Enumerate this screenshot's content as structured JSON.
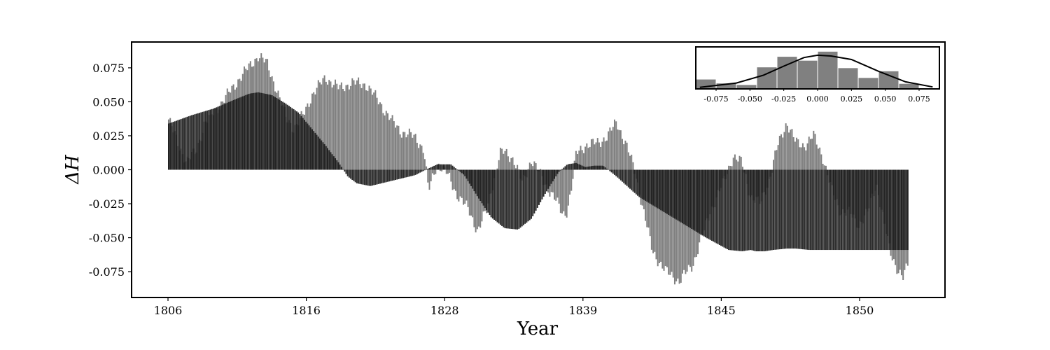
{
  "chart_data": [
    {
      "type": "bar",
      "role": "main",
      "title": "",
      "xlabel": "Year",
      "ylabel": "ΔH",
      "ylim": [
        -0.094,
        0.094
      ],
      "yticks": [
        0.075,
        0.05,
        0.025,
        0.0,
        -0.025,
        -0.05,
        -0.075
      ],
      "ytick_labels": [
        "0.075",
        "0.050",
        "0.025",
        "0.000",
        "-0.025",
        "-0.050",
        "-0.075"
      ],
      "xtick_labels": [
        "1806",
        "1816",
        "1828",
        "1839",
        "1845",
        "1850"
      ],
      "bar_count": 480,
      "colors": {
        "raw": "#808080",
        "smooth": "#1a1a1a",
        "frame": "#000000"
      },
      "series": [
        {
          "kind": "raw",
          "points": [
            [
              0,
              0.037
            ],
            [
              2,
              0.02
            ],
            [
              4,
              0.006
            ],
            [
              6,
              0.013
            ],
            [
              8,
              0.034
            ],
            [
              12,
              0.05
            ],
            [
              16,
              0.068
            ],
            [
              19,
              0.08
            ],
            [
              20,
              0.084
            ],
            [
              22,
              0.078
            ],
            [
              24,
              0.06
            ],
            [
              26,
              0.04
            ],
            [
              28,
              0.03
            ],
            [
              30,
              0.04
            ],
            [
              32,
              0.055
            ],
            [
              35,
              0.068
            ],
            [
              38,
              0.06
            ],
            [
              41,
              0.064
            ],
            [
              44,
              0.063
            ],
            [
              47,
              0.05
            ],
            [
              50,
              0.035
            ],
            [
              52,
              0.028
            ],
            [
              55,
              0.024
            ],
            [
              57,
              0.015
            ],
            [
              58,
              -0.016
            ],
            [
              60,
              0.005
            ],
            [
              62,
              -0.002
            ],
            [
              64,
              -0.016
            ],
            [
              67,
              -0.03
            ],
            [
              69,
              -0.045
            ],
            [
              71,
              -0.03
            ],
            [
              72,
              -0.015
            ],
            [
              74,
              0.012
            ],
            [
              75,
              0.013
            ],
            [
              77,
              0.008
            ],
            [
              79,
              -0.01
            ],
            [
              81,
              0.008
            ],
            [
              82,
              0.002
            ],
            [
              84,
              -0.01
            ],
            [
              86,
              -0.02
            ],
            [
              88,
              -0.033
            ],
            [
              89,
              -0.03
            ],
            [
              90,
              -0.012
            ],
            [
              91,
              0.012
            ],
            [
              93,
              0.018
            ],
            [
              96,
              0.02
            ],
            [
              98,
              0.025
            ],
            [
              100,
              0.035
            ],
            [
              102,
              0.02
            ],
            [
              104,
              0.0
            ],
            [
              106,
              -0.03
            ],
            [
              108,
              -0.06
            ],
            [
              111,
              -0.075
            ],
            [
              114,
              -0.082
            ],
            [
              117,
              -0.07
            ],
            [
              119,
              -0.05
            ],
            [
              121,
              -0.03
            ],
            [
              124,
              -0.008
            ],
            [
              126,
              0.01
            ],
            [
              128,
              0.005
            ],
            [
              130,
              -0.02
            ],
            [
              132,
              -0.025
            ],
            [
              134,
              -0.008
            ],
            [
              136,
              0.018
            ],
            [
              138,
              0.035
            ],
            [
              140,
              0.02
            ],
            [
              142,
              0.018
            ],
            [
              144,
              0.025
            ],
            [
              146,
              0.01
            ],
            [
              148,
              -0.015
            ],
            [
              150,
              -0.03
            ],
            [
              152,
              -0.032
            ],
            [
              154,
              -0.04
            ],
            [
              156,
              -0.032
            ],
            [
              158,
              -0.01
            ],
            [
              161,
              -0.06
            ],
            [
              163,
              -0.075
            ],
            [
              164,
              -0.08
            ],
            [
              165,
              -0.07
            ]
          ]
        },
        {
          "kind": "smooth",
          "points": [
            [
              0,
              0.034
            ],
            [
              5,
              0.04
            ],
            [
              10,
              0.045
            ],
            [
              15,
              0.052
            ],
            [
              18,
              0.056
            ],
            [
              20,
              0.057
            ],
            [
              23,
              0.055
            ],
            [
              26,
              0.049
            ],
            [
              29,
              0.042
            ],
            [
              32,
              0.03
            ],
            [
              35,
              0.018
            ],
            [
              38,
              0.005
            ],
            [
              40,
              -0.005
            ],
            [
              42,
              -0.01
            ],
            [
              45,
              -0.012
            ],
            [
              50,
              -0.008
            ],
            [
              55,
              -0.004
            ],
            [
              58,
              0.001
            ],
            [
              60,
              0.004
            ],
            [
              63,
              0.004
            ],
            [
              66,
              -0.004
            ],
            [
              69,
              -0.02
            ],
            [
              72,
              -0.035
            ],
            [
              75,
              -0.043
            ],
            [
              78,
              -0.044
            ],
            [
              81,
              -0.036
            ],
            [
              84,
              -0.018
            ],
            [
              87,
              -0.002
            ],
            [
              89,
              0.004
            ],
            [
              91,
              0.005
            ],
            [
              93,
              0.002
            ],
            [
              95,
              0.003
            ],
            [
              97,
              0.003
            ],
            [
              100,
              -0.005
            ],
            [
              105,
              -0.02
            ],
            [
              110,
              -0.03
            ],
            [
              115,
              -0.04
            ],
            [
              120,
              -0.05
            ],
            [
              125,
              -0.059
            ],
            [
              128,
              -0.06
            ],
            [
              130,
              -0.059
            ],
            [
              131,
              -0.06
            ],
            [
              133,
              -0.06
            ],
            [
              135,
              -0.059
            ],
            [
              138,
              -0.058
            ],
            [
              140,
              -0.058
            ],
            [
              143,
              -0.059
            ],
            [
              146,
              -0.059
            ],
            [
              150,
              -0.059
            ],
            [
              155,
              -0.059
            ],
            [
              160,
              -0.059
            ],
            [
              165,
              -0.059
            ]
          ]
        }
      ]
    },
    {
      "type": "bar",
      "role": "inset-histogram",
      "title": "",
      "xlim": [
        -0.09,
        0.09
      ],
      "xtick_labels": [
        "-0.075",
        "-0.050",
        "-0.025",
        "0.000",
        "0.025",
        "0.050",
        "0.075"
      ],
      "bins": [
        {
          "x0": -0.09,
          "x1": -0.075,
          "value": 0.24
        },
        {
          "x0": -0.075,
          "x1": -0.06,
          "value": 0.14
        },
        {
          "x0": -0.06,
          "x1": -0.045,
          "value": 0.1
        },
        {
          "x0": -0.045,
          "x1": -0.03,
          "value": 0.55
        },
        {
          "x0": -0.03,
          "x1": -0.015,
          "value": 0.82
        },
        {
          "x0": -0.015,
          "x1": 0.0,
          "value": 0.72
        },
        {
          "x0": 0.0,
          "x1": 0.015,
          "value": 0.95
        },
        {
          "x0": 0.015,
          "x1": 0.03,
          "value": 0.53
        },
        {
          "x0": 0.03,
          "x1": 0.045,
          "value": 0.28
        },
        {
          "x0": 0.045,
          "x1": 0.06,
          "value": 0.45
        },
        {
          "x0": 0.06,
          "x1": 0.075,
          "value": 0.13
        }
      ],
      "density_curve": [
        [
          -0.087,
          0.04
        ],
        [
          -0.06,
          0.15
        ],
        [
          -0.04,
          0.35
        ],
        [
          -0.025,
          0.58
        ],
        [
          -0.01,
          0.8
        ],
        [
          0.0,
          0.86
        ],
        [
          0.01,
          0.84
        ],
        [
          0.025,
          0.75
        ],
        [
          0.045,
          0.45
        ],
        [
          0.065,
          0.18
        ],
        [
          0.085,
          0.05
        ]
      ]
    }
  ]
}
